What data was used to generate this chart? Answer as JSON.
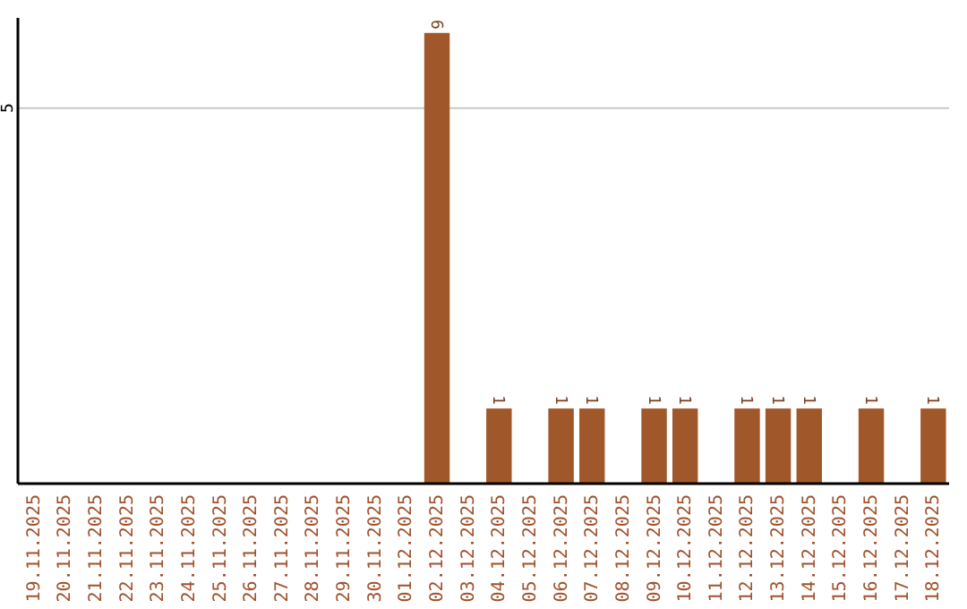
{
  "chart_data": {
    "type": "bar",
    "categories": [
      "19.11.2025",
      "20.11.2025",
      "21.11.2025",
      "22.11.2025",
      "23.11.2025",
      "24.11.2025",
      "25.11.2025",
      "26.11.2025",
      "27.11.2025",
      "28.11.2025",
      "29.11.2025",
      "30.11.2025",
      "01.12.2025",
      "02.12.2025",
      "03.12.2025",
      "04.12.2025",
      "05.12.2025",
      "06.12.2025",
      "07.12.2025",
      "08.12.2025",
      "09.12.2025",
      "10.12.2025",
      "11.12.2025",
      "12.12.2025",
      "13.12.2025",
      "14.12.2025",
      "15.12.2025",
      "16.12.2025",
      "17.12.2025",
      "18.12.2025"
    ],
    "values": [
      null,
      null,
      null,
      null,
      null,
      null,
      null,
      null,
      null,
      null,
      null,
      null,
      null,
      6,
      null,
      1,
      null,
      1,
      1,
      null,
      1,
      1,
      null,
      1,
      1,
      1,
      null,
      1,
      null,
      1
    ],
    "data_labels": true,
    "color": "#a0572a",
    "ylim": [
      0,
      6.2
    ],
    "yticks": [
      5
    ],
    "grid": "y"
  }
}
